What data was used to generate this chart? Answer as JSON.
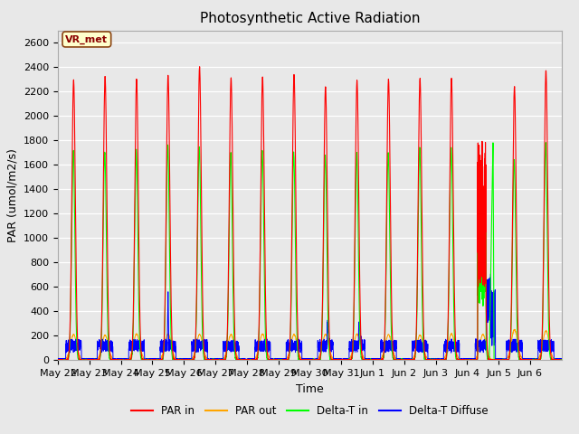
{
  "title": "Photosynthetic Active Radiation",
  "ylabel": "PAR (umol/m2/s)",
  "xlabel": "Time",
  "ylim": [
    0,
    2700
  ],
  "yticks": [
    0,
    200,
    400,
    600,
    800,
    1000,
    1200,
    1400,
    1600,
    1800,
    2000,
    2200,
    2400,
    2600
  ],
  "plot_bg_color": "#e8e8e8",
  "fig_bg_color": "#e8e8e8",
  "legend_labels": [
    "PAR in",
    "PAR out",
    "Delta-T in",
    "Delta-T Diffuse"
  ],
  "annotation_text": "VR_met",
  "annotation_color": "#8B0000",
  "annotation_bg": "#ffffcc",
  "annotation_border": "#8B4513",
  "num_days": 16,
  "title_fontsize": 11,
  "label_fontsize": 9,
  "tick_fontsize": 8,
  "tick_labels": [
    "May 22",
    "May 23",
    "May 24",
    "May 25",
    "May 26",
    "May 27",
    "May 28",
    "May 29",
    "May 30",
    "May 31",
    "Jun 1",
    "Jun 2",
    "Jun 3",
    "Jun 4",
    "Jun 5",
    "Jun 6"
  ]
}
